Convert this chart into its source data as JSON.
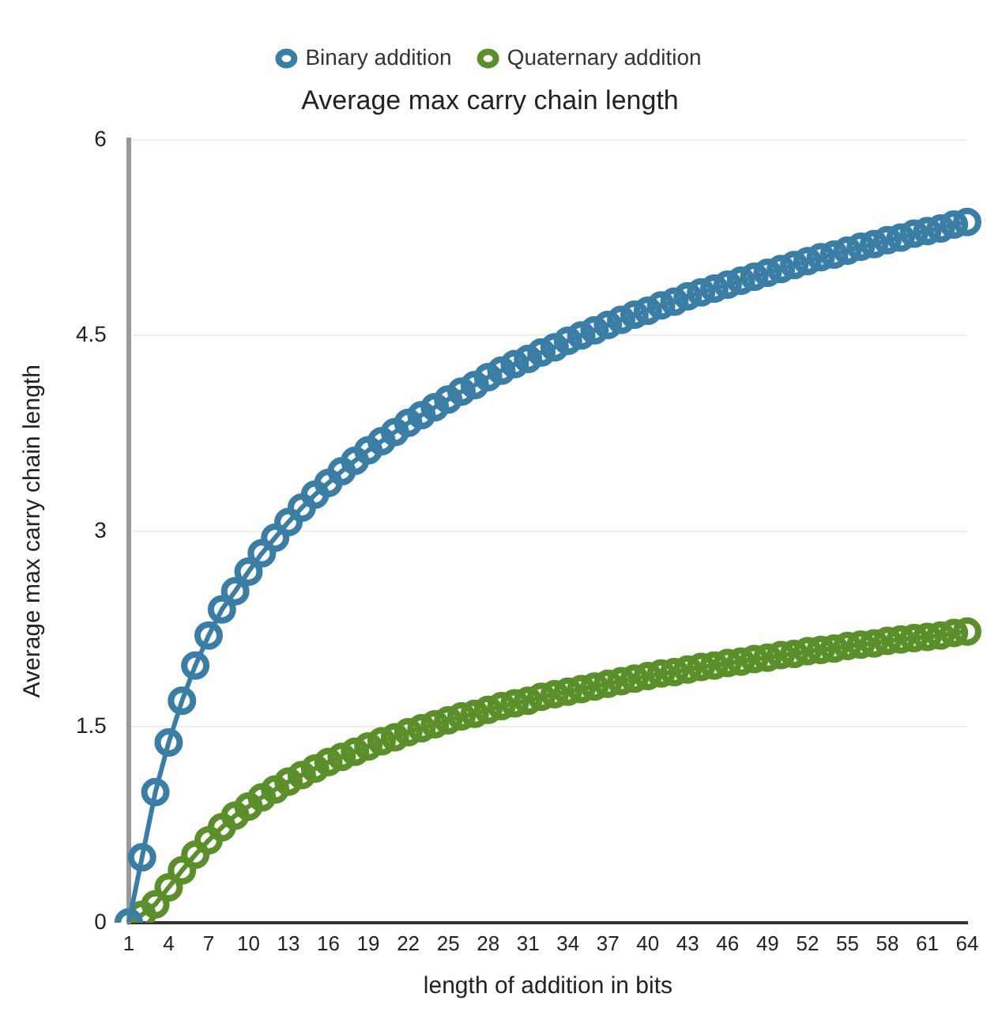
{
  "chart_data": {
    "type": "line",
    "title": "Average max carry chain length",
    "xlabel": "length of addition in bits",
    "ylabel": "Average max carry chain length",
    "categories": [
      "1",
      null,
      null,
      "4",
      null,
      null,
      "7",
      null,
      null,
      "10",
      null,
      null,
      "13",
      null,
      null,
      "16",
      null,
      null,
      "19",
      null,
      null,
      "22",
      null,
      null,
      "25",
      null,
      null,
      "28",
      null,
      null,
      "31",
      null,
      null,
      "34",
      null,
      null,
      "37",
      null,
      null,
      "40",
      null,
      null,
      "43",
      null,
      null,
      "46",
      null,
      null,
      "49",
      null,
      null,
      "52",
      null,
      null,
      "55",
      null,
      null,
      "58",
      null,
      null,
      "61",
      null,
      null,
      "64"
    ],
    "series": [
      {
        "name": "Binary addition",
        "color": "#3a7ea6",
        "values": [
          0,
          0.5,
          1.0,
          1.38,
          1.7,
          1.97,
          2.2,
          2.4,
          2.54,
          2.69,
          2.83,
          2.95,
          3.07,
          3.18,
          3.28,
          3.37,
          3.46,
          3.54,
          3.62,
          3.69,
          3.76,
          3.83,
          3.89,
          3.95,
          4.01,
          4.07,
          4.12,
          4.18,
          4.23,
          4.28,
          4.32,
          4.37,
          4.41,
          4.46,
          4.5,
          4.54,
          4.58,
          4.62,
          4.66,
          4.69,
          4.73,
          4.76,
          4.8,
          4.83,
          4.86,
          4.89,
          4.92,
          4.95,
          4.98,
          5.01,
          5.04,
          5.07,
          5.1,
          5.12,
          5.15,
          5.18,
          5.2,
          5.23,
          5.25,
          5.28,
          5.3,
          5.32,
          5.35,
          5.37
        ]
      },
      {
        "name": "Quaternary addition",
        "color": "#5a8f29",
        "values": [
          0,
          0.06,
          0.14,
          0.27,
          0.4,
          0.52,
          0.63,
          0.73,
          0.82,
          0.89,
          0.96,
          1.02,
          1.08,
          1.13,
          1.18,
          1.23,
          1.27,
          1.31,
          1.35,
          1.39,
          1.42,
          1.46,
          1.49,
          1.52,
          1.55,
          1.58,
          1.6,
          1.63,
          1.66,
          1.68,
          1.7,
          1.73,
          1.75,
          1.77,
          1.79,
          1.81,
          1.83,
          1.85,
          1.87,
          1.89,
          1.91,
          1.92,
          1.94,
          1.96,
          1.97,
          1.99,
          2.0,
          2.02,
          2.03,
          2.05,
          2.06,
          2.08,
          2.09,
          2.1,
          2.12,
          2.13,
          2.14,
          2.16,
          2.17,
          2.18,
          2.19,
          2.2,
          2.22,
          2.23
        ]
      }
    ],
    "ylim": [
      0,
      6
    ],
    "yticks": [
      0,
      1.5,
      3,
      4.5,
      6
    ],
    "grid": "y",
    "legend": "top",
    "marker": "circle",
    "line_style": "solid"
  }
}
